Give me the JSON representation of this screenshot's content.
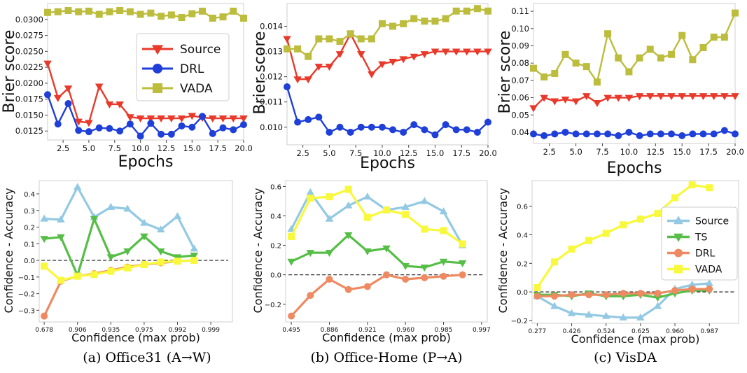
{
  "captions": [
    "(a) Office31 (A→W)",
    "(b) Office-Home (P→A)",
    "(c) VisDA"
  ],
  "chart_data": [
    {
      "type": "line",
      "xlabel": "Epochs",
      "ylabel": "Brier score",
      "xlim": [
        1,
        20
      ],
      "ylim": [
        0.0111,
        0.0325
      ],
      "xticks": [
        2.5,
        5.0,
        7.5,
        10.0,
        12.5,
        15.0,
        17.5,
        20.0
      ],
      "xtick_labels": [
        "2.5",
        "5.0",
        "7.5",
        "10.0",
        "12.5",
        "15.0",
        "17.5",
        "20.0"
      ],
      "yticks": [
        0.0125,
        0.015,
        0.0175,
        0.02,
        0.0225,
        0.025,
        0.0275,
        0.03
      ],
      "ytick_labels": [
        "0.0125",
        "0.0150",
        "0.0175",
        "0.0200",
        "0.0225",
        "0.0250",
        "0.0275",
        "0.0300"
      ],
      "legend": "center-right",
      "x": [
        1,
        2,
        3,
        4,
        5,
        6,
        7,
        8,
        9,
        10,
        11,
        12,
        13,
        14,
        15,
        16,
        17,
        18,
        19,
        20
      ],
      "series": [
        {
          "name": "Source",
          "color": "#e8392a",
          "marker": "triangle-down",
          "values": [
            0.0231,
            0.0177,
            0.0192,
            0.014,
            0.0138,
            0.0195,
            0.0167,
            0.0167,
            0.0147,
            0.0145,
            0.0145,
            0.0145,
            0.0145,
            0.0145,
            0.0149,
            0.0146,
            0.0145,
            0.0145,
            0.0145,
            0.0145
          ]
        },
        {
          "name": "DRL",
          "color": "#1f3fd9",
          "marker": "circle",
          "values": [
            0.0182,
            0.0136,
            0.0168,
            0.0126,
            0.0124,
            0.013,
            0.0129,
            0.0125,
            0.0136,
            0.0117,
            0.0137,
            0.012,
            0.012,
            0.0133,
            0.0131,
            0.0148,
            0.0121,
            0.013,
            0.0127,
            0.0135
          ]
        },
        {
          "name": "VADA",
          "color": "#bcbd3c",
          "marker": "square",
          "values": [
            0.0311,
            0.0312,
            0.0314,
            0.0312,
            0.0313,
            0.0308,
            0.0312,
            0.0314,
            0.0312,
            0.0308,
            0.031,
            0.0305,
            0.0307,
            0.0303,
            0.0309,
            0.0313,
            0.0302,
            0.0304,
            0.0313,
            0.0302
          ]
        }
      ]
    },
    {
      "type": "line",
      "xlabel": "Epochs",
      "ylabel": "Brier score",
      "xlim": [
        1,
        20
      ],
      "ylim": [
        0.0093,
        0.0149
      ],
      "xticks": [
        2.5,
        5.0,
        7.5,
        10.0,
        12.5,
        15.0,
        17.5,
        20.0
      ],
      "xtick_labels": [
        "2.5",
        "5.0",
        "7.5",
        "10.0",
        "12.5",
        "15.0",
        "17.5",
        "20.0"
      ],
      "yticks": [
        0.01,
        0.011,
        0.012,
        0.013,
        0.014
      ],
      "ytick_labels": [
        "0.010",
        "0.011",
        "0.012",
        "0.013",
        "0.014"
      ],
      "x": [
        1,
        2,
        3,
        4,
        5,
        6,
        7,
        8,
        9,
        10,
        11,
        12,
        13,
        14,
        15,
        16,
        17,
        18,
        19,
        20
      ],
      "series": [
        {
          "name": "Source",
          "color": "#e8392a",
          "marker": "triangle-down",
          "values": [
            0.0135,
            0.0119,
            0.0119,
            0.0124,
            0.0124,
            0.0129,
            0.0137,
            0.0129,
            0.0121,
            0.0125,
            0.0126,
            0.0127,
            0.0128,
            0.0129,
            0.013,
            0.013,
            0.013,
            0.013,
            0.013,
            0.013
          ]
        },
        {
          "name": "DRL",
          "color": "#1f3fd9",
          "marker": "circle",
          "values": [
            0.0116,
            0.0102,
            0.0103,
            0.0104,
            0.0098,
            0.01,
            0.0098,
            0.01,
            0.01,
            0.01,
            0.0099,
            0.0098,
            0.0101,
            0.0099,
            0.0097,
            0.0101,
            0.0099,
            0.0099,
            0.0098,
            0.0102
          ]
        },
        {
          "name": "VADA",
          "color": "#bcbd3c",
          "marker": "square",
          "values": [
            0.0131,
            0.0131,
            0.0128,
            0.0135,
            0.0135,
            0.0134,
            0.0137,
            0.0135,
            0.0135,
            0.0141,
            0.014,
            0.0141,
            0.0143,
            0.0142,
            0.0142,
            0.0143,
            0.0146,
            0.0146,
            0.0147,
            0.0146
          ]
        }
      ]
    },
    {
      "type": "line",
      "xlabel": "Epochs",
      "ylabel": "Brier score",
      "xlim": [
        1,
        20
      ],
      "ylim": [
        0.0335,
        0.1145
      ],
      "xticks": [
        2.5,
        5.0,
        7.5,
        10.0,
        12.5,
        15.0,
        17.5,
        20.0
      ],
      "xtick_labels": [
        "2.5",
        "5.0",
        "7.5",
        "10.0",
        "12.5",
        "15.0",
        "17.5",
        "20.0"
      ],
      "yticks": [
        0.04,
        0.05,
        0.06,
        0.07,
        0.08,
        0.09,
        0.1,
        0.11
      ],
      "ytick_labels": [
        "0.04",
        "0.05",
        "0.06",
        "0.07",
        "0.08",
        "0.09",
        "0.10",
        "0.11"
      ],
      "x": [
        1,
        2,
        3,
        4,
        5,
        6,
        7,
        8,
        9,
        10,
        11,
        12,
        13,
        14,
        15,
        16,
        17,
        18,
        19,
        20
      ],
      "series": [
        {
          "name": "Source",
          "color": "#e8392a",
          "marker": "triangle-down",
          "values": [
            0.054,
            0.06,
            0.058,
            0.059,
            0.058,
            0.061,
            0.057,
            0.06,
            0.06,
            0.06,
            0.061,
            0.061,
            0.061,
            0.061,
            0.061,
            0.061,
            0.061,
            0.061,
            0.061,
            0.061
          ]
        },
        {
          "name": "DRL",
          "color": "#1f3fd9",
          "marker": "circle",
          "values": [
            0.039,
            0.038,
            0.039,
            0.04,
            0.039,
            0.039,
            0.039,
            0.039,
            0.038,
            0.04,
            0.038,
            0.039,
            0.039,
            0.039,
            0.038,
            0.039,
            0.039,
            0.039,
            0.041,
            0.039
          ]
        },
        {
          "name": "VADA",
          "color": "#bcbd3c",
          "marker": "square",
          "values": [
            0.077,
            0.072,
            0.074,
            0.085,
            0.08,
            0.078,
            0.069,
            0.097,
            0.083,
            0.075,
            0.083,
            0.088,
            0.083,
            0.085,
            0.096,
            0.082,
            0.089,
            0.095,
            0.095,
            0.109
          ]
        }
      ]
    },
    {
      "type": "line",
      "xlabel": "Confidence (max prob)",
      "ylabel": "Confidence - Accuracy",
      "xlim": [
        -0.3,
        11.3
      ],
      "ylim": [
        -0.37,
        0.48
      ],
      "xtick_labels": [
        "0.678",
        "0.906",
        "0.935",
        "0.975",
        "0.992",
        "0.999"
      ],
      "xtick_positions": [
        0,
        2,
        4,
        6,
        8,
        10
      ],
      "yticks": [
        -0.3,
        -0.2,
        -0.1,
        0.0,
        0.1,
        0.2,
        0.3,
        0.4
      ],
      "ytick_labels": [
        "−0.3",
        "−0.2",
        "−0.1",
        "0.0",
        "0.1",
        "0.2",
        "0.3",
        "0.4"
      ],
      "reference_line": 0,
      "x": [
        0,
        1,
        2,
        3,
        4,
        5,
        6,
        7,
        8,
        9,
        10
      ],
      "series": [
        {
          "name": "Source",
          "color": "#93c9e3",
          "marker": "triangle-up",
          "values": [
            0.25,
            0.245,
            0.44,
            0.26,
            0.32,
            0.31,
            0.225,
            0.185,
            0.265,
            0.07,
            null
          ]
        },
        {
          "name": "TS",
          "color": "#56be47",
          "marker": "triangle-down",
          "values": [
            0.13,
            0.14,
            -0.09,
            0.25,
            0.02,
            0.055,
            0.145,
            0.055,
            0.02,
            0.03,
            null
          ]
        },
        {
          "name": "DRL",
          "color": "#ee8a62",
          "marker": "circle",
          "values": [
            -0.335,
            -0.125,
            -0.095,
            -0.08,
            -0.06,
            -0.04,
            -0.025,
            -0.015,
            -0.005,
            0.0,
            null
          ]
        },
        {
          "name": "VADA",
          "color": "#f8f83c",
          "marker": "square",
          "values": [
            -0.035,
            -0.12,
            -0.095,
            -0.085,
            -0.065,
            -0.045,
            -0.025,
            -0.01,
            -0.005,
            0.0,
            null
          ]
        }
      ]
    },
    {
      "type": "line",
      "xlabel": "Confidence (max prob)",
      "ylabel": "Confidence - Accuracy",
      "xlim": [
        -0.3,
        10.3
      ],
      "ylim": [
        -0.32,
        0.64
      ],
      "xtick_labels": [
        "0.495",
        "0.886",
        "0.921",
        "0.960",
        "0.985",
        "0.997"
      ],
      "xtick_positions": [
        0,
        2,
        4,
        6,
        8,
        10
      ],
      "yticks": [
        -0.2,
        0.0,
        0.2,
        0.4,
        0.6
      ],
      "ytick_labels": [
        "−0.2",
        "0.0",
        "0.2",
        "0.4",
        "0.6"
      ],
      "reference_line": 0,
      "x": [
        0,
        1,
        2,
        3,
        4,
        5,
        6,
        7,
        8,
        9
      ],
      "series": [
        {
          "name": "Source",
          "color": "#93c9e3",
          "marker": "triangle-up",
          "values": [
            0.31,
            0.56,
            0.38,
            0.47,
            0.53,
            0.44,
            0.46,
            0.5,
            0.43,
            0.2
          ]
        },
        {
          "name": "TS",
          "color": "#56be47",
          "marker": "triangle-down",
          "values": [
            0.09,
            0.15,
            0.15,
            0.27,
            0.16,
            0.18,
            0.06,
            0.05,
            0.09,
            0.08
          ]
        },
        {
          "name": "DRL",
          "color": "#ee8a62",
          "marker": "circle",
          "values": [
            -0.28,
            -0.14,
            -0.03,
            -0.1,
            -0.08,
            0.0,
            -0.03,
            -0.02,
            -0.01,
            0.0
          ]
        },
        {
          "name": "VADA",
          "color": "#f8f83c",
          "marker": "square",
          "values": [
            0.26,
            0.52,
            0.53,
            0.58,
            0.39,
            0.44,
            0.41,
            0.31,
            0.3,
            0.21
          ]
        }
      ]
    },
    {
      "type": "line",
      "xlabel": "Confidence (max prob)",
      "ylabel": "Confidence - Accuracy",
      "xlim": [
        -0.3,
        11.7
      ],
      "ylim": [
        -0.22,
        0.78
      ],
      "xtick_labels": [
        "0.277",
        "0.426",
        "0.524",
        "0.625",
        "0.960",
        "0.987"
      ],
      "xtick_positions": [
        0,
        2,
        4,
        6,
        8,
        10
      ],
      "yticks": [
        -0.2,
        0.0,
        0.2,
        0.4,
        0.6
      ],
      "ytick_labels": [
        "−0.2",
        "0.0",
        "0.2",
        "0.4",
        "0.6"
      ],
      "legend": "center-right",
      "reference_line": 0,
      "x": [
        0,
        1,
        2,
        3,
        4,
        5,
        6,
        7,
        8,
        9,
        10,
        11
      ],
      "series": [
        {
          "name": "Source",
          "color": "#93c9e3",
          "marker": "triangle-up",
          "values": [
            -0.03,
            -0.1,
            -0.15,
            -0.16,
            -0.17,
            -0.18,
            -0.18,
            -0.1,
            0.02,
            0.05,
            0.06,
            null
          ]
        },
        {
          "name": "TS",
          "color": "#56be47",
          "marker": "triangle-down",
          "values": [
            -0.02,
            -0.02,
            -0.03,
            -0.01,
            -0.03,
            -0.03,
            -0.02,
            -0.04,
            -0.01,
            0.01,
            0.01,
            null
          ]
        },
        {
          "name": "DRL",
          "color": "#ee8a62",
          "marker": "circle",
          "values": [
            -0.03,
            -0.03,
            -0.02,
            -0.02,
            -0.02,
            -0.01,
            -0.01,
            -0.01,
            0.01,
            0.02,
            0.02,
            null
          ]
        },
        {
          "name": "VADA",
          "color": "#f8f83c",
          "marker": "square",
          "values": [
            0.03,
            0.21,
            0.3,
            0.36,
            0.41,
            0.47,
            0.51,
            0.55,
            0.66,
            0.75,
            0.73,
            null
          ]
        }
      ]
    }
  ]
}
